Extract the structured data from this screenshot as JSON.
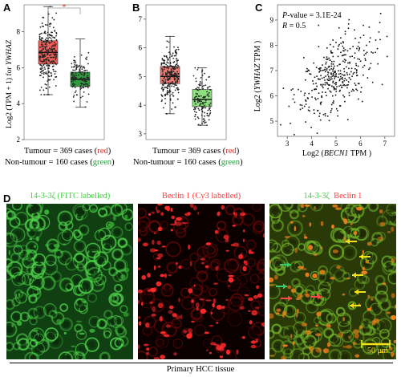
{
  "panels": {
    "a": {
      "letter": "A",
      "ylabel_prefix": "Log2 (TPM + 1) for ",
      "ylabel_gene": "YWHAZ",
      "yticks": [
        "2",
        "4",
        "6",
        "8"
      ],
      "significance": "*",
      "caption_tumour_prefix": "Tumour = 369 cases (",
      "caption_tumour_color": "red",
      "caption_nontumour_prefix": "Non-tumour = 160 cases (",
      "caption_nontumour_color": "green",
      "caption_suffix": ")"
    },
    "b": {
      "letter": "B",
      "yticks": [
        "3",
        "4",
        "5",
        "6",
        "7"
      ],
      "caption_tumour_prefix": "Tumour = 369 cases (",
      "caption_tumour_color": "red",
      "caption_nontumour_prefix": "Non-tumour = 160 cases (",
      "caption_nontumour_color": "green",
      "caption_suffix": ")"
    },
    "c": {
      "letter": "C",
      "pvalue_label": "P",
      "pvalue_text": "-value = 3.1E-24",
      "r_label": "R",
      "r_text": " = 0.5",
      "ylabel_prefix": "Log2 (",
      "ylabel_gene": "YWHAZ",
      "ylabel_suffix": " TPM )",
      "xlabel_prefix": "Log2 (",
      "xlabel_gene": "BECN1",
      "xlabel_suffix": " TPM )",
      "xticks": [
        "3",
        "4",
        "5",
        "6",
        "7"
      ],
      "yticks": [
        "5",
        "6",
        "7",
        "8",
        "9"
      ]
    },
    "d": {
      "letter": "D",
      "title_green": "14-3-3ζ (FITC labelled)",
      "title_red": "Beclin 1 (Cy3 labelled)",
      "title_merge_green": "14-3-3ζ",
      "title_merge_red": "Beclin 1",
      "scale_bar": "50 μm",
      "tissue_label": "Primary HCC tissue"
    }
  },
  "colors": {
    "tumour_box": "#f0605a",
    "tumour_box_b": "#f07a72",
    "nontumour_box": "#2f9a3e",
    "nontumour_box_b": "#8ae07c",
    "arrow_yellow": "#f5e11a",
    "arrow_green": "#38c96a",
    "arrow_red": "#ff4848"
  },
  "chart_data": [
    {
      "type": "box",
      "panel": "A",
      "categories": [
        "Tumour",
        "Non-tumour"
      ],
      "n": [
        369,
        160
      ],
      "ylim": [
        2,
        9.5
      ],
      "stats": [
        {
          "min": 4.5,
          "q1": 6.2,
          "median": 6.85,
          "q3": 7.5,
          "max": 9.4
        },
        {
          "min": 3.8,
          "q1": 4.95,
          "median": 5.35,
          "q3": 5.75,
          "max": 7.6
        }
      ]
    },
    {
      "type": "box",
      "panel": "B",
      "categories": [
        "Tumour",
        "Non-tumour"
      ],
      "n": [
        369,
        160
      ],
      "ylim": [
        2.8,
        7.5
      ],
      "stats": [
        {
          "min": 3.7,
          "q1": 4.75,
          "median": 5.0,
          "q3": 5.35,
          "max": 6.4
        },
        {
          "min": 3.3,
          "q1": 3.95,
          "median": 4.2,
          "q3": 4.55,
          "max": 5.3
        }
      ]
    },
    {
      "type": "scatter",
      "panel": "C",
      "n": 369,
      "pvalue": "3.1E-24",
      "r": 0.5,
      "xlim": [
        2.6,
        7.4
      ],
      "ylim": [
        4.4,
        9.6
      ],
      "center": [
        5.0,
        6.8
      ]
    }
  ]
}
